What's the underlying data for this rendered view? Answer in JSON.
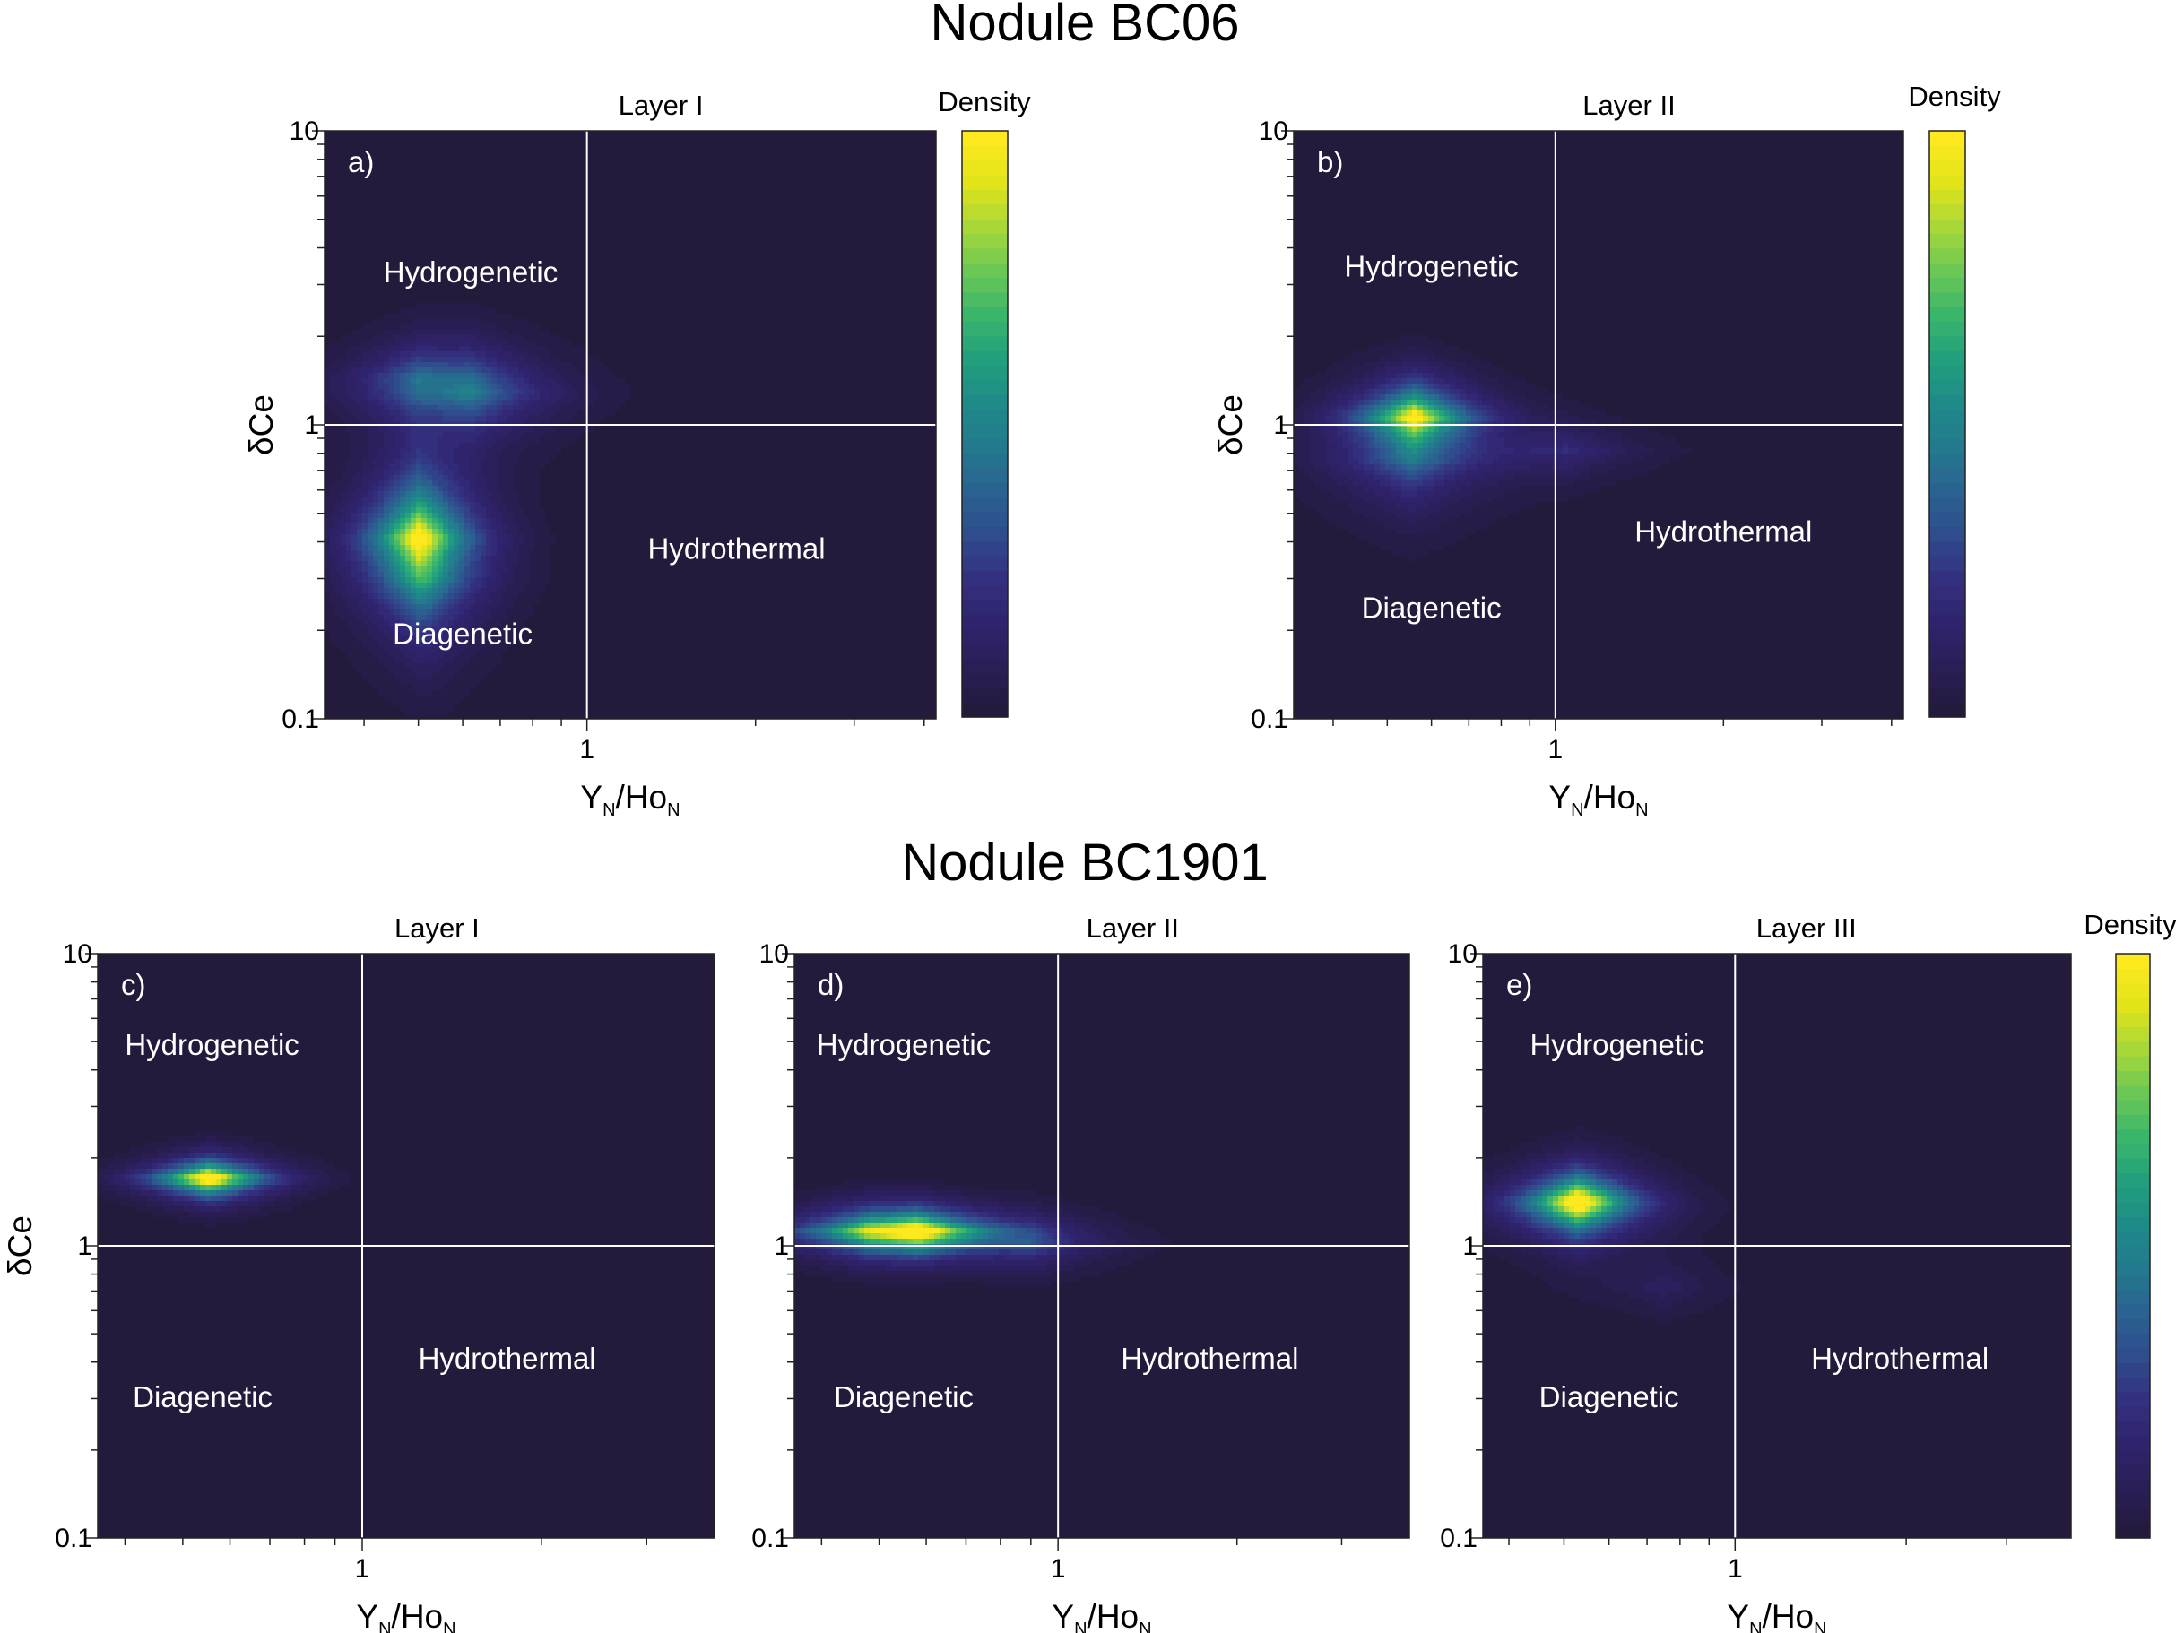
{
  "groups": [
    {
      "title": "Nodule BC06"
    },
    {
      "title": "Nodule BC1901"
    }
  ],
  "colorbar_label": "Density",
  "colormap": [
    "#231a3c",
    "#2a1e57",
    "#30236d",
    "#33317f",
    "#2f4c8c",
    "#2a6391",
    "#23798e",
    "#1f8b88",
    "#22a07d",
    "#3ab66b",
    "#6cc855",
    "#a8d838",
    "#e2e41a",
    "#fde91e"
  ],
  "background_color": "#231a3c",
  "chart_data": [
    {
      "id": "a",
      "type": "heatmap",
      "panel_label": "a)",
      "title": "Layer I",
      "xlabel": "YN/HoN",
      "ylabel": "δCe",
      "x_scale": "log",
      "y_scale": "log",
      "xlim": [
        0.34,
        4.2
      ],
      "ylim": [
        0.1,
        10
      ],
      "x_ticks": [
        {
          "value": 1,
          "label": "1"
        }
      ],
      "y_ticks": [
        {
          "value": 0.1,
          "label": "0.1"
        },
        {
          "value": 1,
          "label": "1"
        },
        {
          "value": 10,
          "label": "10"
        }
      ],
      "reference_lines": {
        "x": 1,
        "y": 1
      },
      "regions": [
        {
          "name": "Hydrogenetic",
          "x": 0.62,
          "y": 3.05
        },
        {
          "name": "Diagenetic",
          "x": 0.6,
          "y": 0.18
        },
        {
          "name": "Hydrothermal",
          "x": 1.85,
          "y": 0.35
        }
      ],
      "density_peaks": [
        {
          "x": 0.5,
          "y": 0.41,
          "sx": 0.14,
          "sy": 0.3,
          "amp": 1.0
        },
        {
          "x": 0.52,
          "y": 0.3,
          "sx": 0.16,
          "sy": 0.42,
          "amp": 0.28
        },
        {
          "x": 0.62,
          "y": 1.28,
          "sx": 0.22,
          "sy": 0.22,
          "amp": 0.45
        },
        {
          "x": 0.5,
          "y": 1.45,
          "sx": 0.17,
          "sy": 0.17,
          "amp": 0.3
        }
      ]
    },
    {
      "id": "b",
      "type": "heatmap",
      "panel_label": "b)",
      "title": "Layer II",
      "xlabel": "YN/HoN",
      "ylabel": "δCe",
      "x_scale": "log",
      "y_scale": "log",
      "xlim": [
        0.34,
        4.2
      ],
      "ylim": [
        0.1,
        10
      ],
      "x_ticks": [
        {
          "value": 1,
          "label": "1"
        }
      ],
      "y_ticks": [
        {
          "value": 0.1,
          "label": "0.1"
        },
        {
          "value": 1,
          "label": "1"
        },
        {
          "value": 10,
          "label": "10"
        }
      ],
      "reference_lines": {
        "x": 1,
        "y": 1
      },
      "regions": [
        {
          "name": "Hydrogenetic",
          "x": 0.6,
          "y": 3.2
        },
        {
          "name": "Diagenetic",
          "x": 0.6,
          "y": 0.22
        },
        {
          "name": "Hydrothermal",
          "x": 2.0,
          "y": 0.4
        }
      ],
      "density_peaks": [
        {
          "x": 0.56,
          "y": 1.06,
          "sx": 0.15,
          "sy": 0.16,
          "amp": 1.0
        },
        {
          "x": 0.55,
          "y": 0.75,
          "sx": 0.22,
          "sy": 0.28,
          "amp": 0.32
        },
        {
          "x": 1.05,
          "y": 0.82,
          "sx": 0.22,
          "sy": 0.14,
          "amp": 0.2
        }
      ]
    },
    {
      "id": "c",
      "type": "heatmap",
      "panel_label": "c)",
      "title": "Layer I",
      "xlabel": "YN/HoN",
      "ylabel": "δCe",
      "x_scale": "log",
      "y_scale": "log",
      "xlim": [
        0.36,
        3.9
      ],
      "ylim": [
        0.1,
        10
      ],
      "x_ticks": [
        {
          "value": 1,
          "label": "1"
        }
      ],
      "y_ticks": [
        {
          "value": 0.1,
          "label": "0.1"
        },
        {
          "value": 1,
          "label": "1"
        },
        {
          "value": 10,
          "label": "10"
        }
      ],
      "reference_lines": {
        "x": 1,
        "y": 1
      },
      "regions": [
        {
          "name": "Hydrogenetic",
          "x": 0.56,
          "y": 4.5
        },
        {
          "name": "Diagenetic",
          "x": 0.54,
          "y": 0.28
        },
        {
          "name": "Hydrothermal",
          "x": 1.75,
          "y": 0.38
        }
      ],
      "density_peaks": [
        {
          "x": 0.55,
          "y": 1.7,
          "sx": 0.13,
          "sy": 0.085,
          "amp": 1.0
        },
        {
          "x": 0.57,
          "y": 1.7,
          "sx": 0.17,
          "sy": 0.12,
          "amp": 0.3
        }
      ]
    },
    {
      "id": "d",
      "type": "heatmap",
      "panel_label": "d)",
      "title": "Layer II",
      "xlabel": "YN/HoN",
      "ylabel": "δCe",
      "x_scale": "log",
      "y_scale": "log",
      "xlim": [
        0.36,
        3.9
      ],
      "ylim": [
        0.1,
        10
      ],
      "x_ticks": [
        {
          "value": 1,
          "label": "1"
        }
      ],
      "y_ticks": [
        {
          "value": 0.1,
          "label": "0.1"
        },
        {
          "value": 1,
          "label": "1"
        },
        {
          "value": 10,
          "label": "10"
        }
      ],
      "reference_lines": {
        "x": 1,
        "y": 1
      },
      "regions": [
        {
          "name": "Hydrogenetic",
          "x": 0.55,
          "y": 4.5
        },
        {
          "name": "Diagenetic",
          "x": 0.55,
          "y": 0.28
        },
        {
          "name": "Hydrothermal",
          "x": 1.8,
          "y": 0.38
        }
      ],
      "density_peaks": [
        {
          "x": 0.58,
          "y": 1.12,
          "sx": 0.17,
          "sy": 0.1,
          "amp": 1.0
        },
        {
          "x": 0.48,
          "y": 1.12,
          "sx": 0.22,
          "sy": 0.12,
          "amp": 0.55
        },
        {
          "x": 0.9,
          "y": 1.02,
          "sx": 0.2,
          "sy": 0.13,
          "amp": 0.3
        }
      ]
    },
    {
      "id": "e",
      "type": "heatmap",
      "panel_label": "e)",
      "title": "Layer III",
      "xlabel": "YN/HoN",
      "ylabel": "δCe",
      "x_scale": "log",
      "y_scale": "log",
      "xlim": [
        0.36,
        3.9
      ],
      "ylim": [
        0.1,
        10
      ],
      "x_ticks": [
        {
          "value": 1,
          "label": "1"
        }
      ],
      "y_ticks": [
        {
          "value": 0.1,
          "label": "0.1"
        },
        {
          "value": 1,
          "label": "1"
        },
        {
          "value": 10,
          "label": "10"
        }
      ],
      "reference_lines": {
        "x": 1,
        "y": 1
      },
      "regions": [
        {
          "name": "Hydrogenetic",
          "x": 0.62,
          "y": 4.5
        },
        {
          "name": "Diagenetic",
          "x": 0.6,
          "y": 0.28
        },
        {
          "name": "Hydrothermal",
          "x": 1.95,
          "y": 0.38
        }
      ],
      "density_peaks": [
        {
          "x": 0.53,
          "y": 1.42,
          "sx": 0.13,
          "sy": 0.13,
          "amp": 1.0
        },
        {
          "x": 0.53,
          "y": 1.35,
          "sx": 0.2,
          "sy": 0.2,
          "amp": 0.35
        },
        {
          "x": 0.75,
          "y": 0.72,
          "sx": 0.18,
          "sy": 0.16,
          "amp": 0.12
        }
      ]
    }
  ]
}
